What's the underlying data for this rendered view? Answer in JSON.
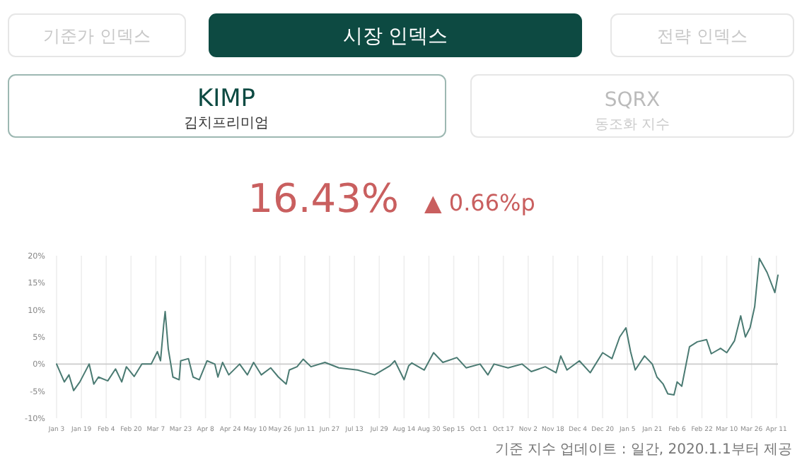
{
  "chart_data": {
    "type": "line",
    "title": "KIMP",
    "subtitle": "김치프리미엄",
    "annotations": [
      "기준가 인덱스",
      "시장 인덱스",
      "전략 인덱스",
      "SQRX",
      "동조화 지수",
      "16.43%",
      "▲ 0.66%p",
      "기준 지수 업데이트 : 일간, 2020.1.1부터 제공"
    ],
    "x": [
      "2020-01-03",
      "2020-01-08",
      "2020-01-11",
      "2020-01-14",
      "2020-01-18",
      "2020-01-24",
      "2020-01-27",
      "2020-01-30",
      "2020-02-05",
      "2020-02-10",
      "2020-02-14",
      "2020-02-17",
      "2020-02-22",
      "2020-02-27",
      "2020-03-04",
      "2020-03-08",
      "2020-03-10",
      "2020-03-12",
      "2020-03-13",
      "2020-03-15",
      "2020-03-18",
      "2020-03-22",
      "2020-03-23",
      "2020-03-28",
      "2020-03-31",
      "2020-04-04",
      "2020-04-09",
      "2020-04-14",
      "2020-04-16",
      "2020-04-19",
      "2020-04-23",
      "2020-04-30",
      "2020-05-05",
      "2020-05-09",
      "2020-05-14",
      "2020-05-20",
      "2020-05-25",
      "2020-05-30",
      "2020-06-01",
      "2020-06-06",
      "2020-06-10",
      "2020-06-15",
      "2020-06-24",
      "2020-07-03",
      "2020-07-15",
      "2020-07-26",
      "2020-08-05",
      "2020-08-08",
      "2020-08-14",
      "2020-08-17",
      "2020-08-19",
      "2020-08-27",
      "2020-09-02",
      "2020-09-08",
      "2020-09-17",
      "2020-09-23",
      "2020-10-02",
      "2020-10-07",
      "2020-10-11",
      "2020-10-20",
      "2020-10-29",
      "2020-11-04",
      "2020-11-13",
      "2020-11-20",
      "2020-11-23",
      "2020-11-27",
      "2020-12-05",
      "2020-12-12",
      "2020-12-20",
      "2020-12-26",
      "2020-12-31",
      "2021-01-04",
      "2021-01-07",
      "2021-01-10",
      "2021-01-16",
      "2021-01-21",
      "2021-01-24",
      "2021-01-28",
      "2021-01-31",
      "2021-02-04",
      "2021-02-06",
      "2021-02-09",
      "2021-02-14",
      "2021-02-19",
      "2021-02-25",
      "2021-02-28",
      "2021-03-06",
      "2021-03-10",
      "2021-03-15",
      "2021-03-19",
      "2021-03-22",
      "2021-03-25",
      "2021-03-28",
      "2021-03-31",
      "2021-04-05",
      "2021-04-10",
      "2021-04-12"
    ],
    "series": [
      {
        "color": "#4a7a72",
        "values": [
          0,
          -3.3,
          -2,
          -4.9,
          -3.3,
          0,
          -3.7,
          -2.4,
          -3.1,
          -0.9,
          -3.3,
          -0.5,
          -2.3,
          0,
          0,
          2.3,
          0.6,
          7.1,
          9.7,
          2.8,
          -2.4,
          -2.9,
          0.6,
          1,
          -2.4,
          -2.9,
          0.6,
          0,
          -2.4,
          0.3,
          -2,
          0,
          -2,
          0.3,
          -2,
          -0.7,
          -2.4,
          -3.7,
          -1.1,
          -0.5,
          0.9,
          -0.5,
          0.3,
          -0.7,
          -1.1,
          -2,
          -0.3,
          0.6,
          -2.9,
          -0.3,
          0.2,
          -1.1,
          2.1,
          0.3,
          1.2,
          -0.7,
          0,
          -2,
          0,
          -0.7,
          0,
          -1.4,
          -0.5,
          -1.6,
          1.5,
          -1.1,
          0.6,
          -1.6,
          2.1,
          1,
          5,
          6.7,
          2.3,
          -1.1,
          1.5,
          0,
          -2.4,
          -3.7,
          -5.5,
          -5.7,
          -3.3,
          -4.1,
          3.2,
          4.1,
          4.5,
          1.9,
          2.9,
          2.1,
          4.3,
          8.9,
          5,
          6.7,
          10.6,
          19.5,
          16.9,
          13.2,
          16.4
        ]
      }
    ],
    "xlim": [
      "2020-01-03",
      "2021-04-12"
    ],
    "xticks": [
      {
        "value": "2020-01-03",
        "label": "Jan 3"
      },
      {
        "value": "2020-01-19",
        "label": "Jan 19"
      },
      {
        "value": "2020-02-04",
        "label": "Feb 4"
      },
      {
        "value": "2020-02-20",
        "label": "Feb 20"
      },
      {
        "value": "2020-03-07",
        "label": "Mar 7"
      },
      {
        "value": "2020-03-23",
        "label": "Mar 23"
      },
      {
        "value": "2020-04-08",
        "label": "Apr 8"
      },
      {
        "value": "2020-04-24",
        "label": "Apr 24"
      },
      {
        "value": "2020-05-10",
        "label": "May 10"
      },
      {
        "value": "2020-05-26",
        "label": "May 26"
      },
      {
        "value": "2020-06-11",
        "label": "Jun 11"
      },
      {
        "value": "2020-06-27",
        "label": "Jun 27"
      },
      {
        "value": "2020-07-13",
        "label": "Jul 13"
      },
      {
        "value": "2020-07-29",
        "label": "Jul 29"
      },
      {
        "value": "2020-08-14",
        "label": "Aug 14"
      },
      {
        "value": "2020-08-30",
        "label": "Aug 30"
      },
      {
        "value": "2020-09-15",
        "label": "Sep 15"
      },
      {
        "value": "2020-10-01",
        "label": "Oct 1"
      },
      {
        "value": "2020-10-17",
        "label": "Oct 17"
      },
      {
        "value": "2020-11-02",
        "label": "Nov 2"
      },
      {
        "value": "2020-11-18",
        "label": "Nov 18"
      },
      {
        "value": "2020-12-04",
        "label": "Dec 4"
      },
      {
        "value": "2020-12-20",
        "label": "Dec 20"
      },
      {
        "value": "2021-01-05",
        "label": "Jan 5"
      },
      {
        "value": "2021-01-21",
        "label": "Jan 21"
      },
      {
        "value": "2021-02-06",
        "label": "Feb 6"
      },
      {
        "value": "2021-02-22",
        "label": "Feb 22"
      },
      {
        "value": "2021-03-10",
        "label": "Mar 10"
      },
      {
        "value": "2021-03-26",
        "label": "Mar 26"
      },
      {
        "value": "2021-04-11",
        "label": "Apr 11"
      }
    ],
    "ylim": [
      -10,
      20
    ],
    "yticks": [
      {
        "value": -10,
        "label": "-10%"
      },
      {
        "value": -5,
        "label": "-5%"
      },
      {
        "value": 0,
        "label": "0%"
      },
      {
        "value": 5,
        "label": "5%"
      },
      {
        "value": 10,
        "label": "10%"
      },
      {
        "value": 15,
        "label": "15%"
      },
      {
        "value": 20,
        "label": "20%"
      }
    ],
    "grid": "x",
    "ref_lines": [
      {
        "axis": "y",
        "value": 0,
        "color": "#cccccc"
      }
    ],
    "marker": "none",
    "line_style": "solid"
  }
}
